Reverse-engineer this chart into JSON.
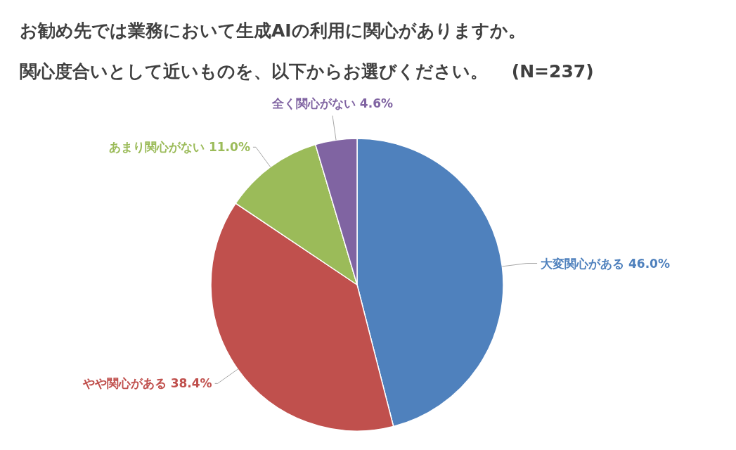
{
  "chart_data": {
    "type": "pie",
    "title": "お勧め先では業務において生成AIの利用に関心がありますか。",
    "subtitle": "関心度合いとして近いものを、以下からお選びください。　 (N=237)",
    "categories": [
      "大変関心がある",
      "やや関心がある",
      "あまり関心がない",
      "全く関心がない"
    ],
    "values": [
      46.0,
      38.4,
      11.0,
      4.6
    ],
    "colors": [
      "#4f81bd",
      "#c0504d",
      "#9bbb59",
      "#8064a2"
    ],
    "value_labels": [
      "46.0%",
      "38.4%",
      "11.0%",
      "4.6%"
    ]
  }
}
